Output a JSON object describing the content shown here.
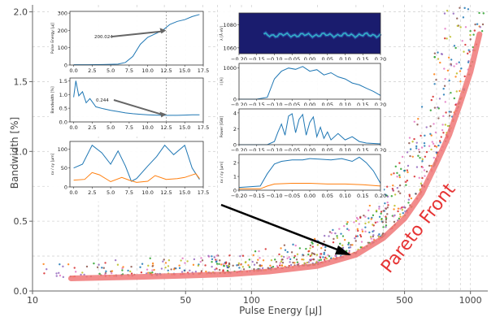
{
  "chart_data": [
    {
      "type": "scatter",
      "role": "main",
      "xlabel": "Pulse Energy [μJ]",
      "ylabel": "Bandwidth [%]",
      "xscale": "log",
      "xlim": [
        10,
        1200
      ],
      "ylim": [
        0.0,
        2.05
      ],
      "xticks": [
        10,
        50,
        100,
        500,
        1000
      ],
      "xtick_labels": [
        "10",
        "50",
        "100",
        "500",
        "1000"
      ],
      "yticks": [
        0.0,
        0.5,
        1.0,
        1.5,
        2.0
      ],
      "ytick_labels": [
        "0.0",
        "0.5",
        "1.0",
        "1.5",
        "2.0"
      ],
      "grid": true,
      "point_colors": [
        "#d62728",
        "#2ca02c",
        "#ff7f0e",
        "#9467bd",
        "#8c564b",
        "#1f77b4",
        "#bcbd22",
        "#e377c2"
      ],
      "pareto_front": {
        "label": "Pareto Front",
        "color": "#f07878",
        "x": [
          15,
          20,
          30,
          50,
          80,
          120,
          200,
          300,
          400,
          500,
          600,
          700,
          800,
          900,
          1000,
          1100
        ],
        "y": [
          0.09,
          0.095,
          0.1,
          0.11,
          0.12,
          0.14,
          0.18,
          0.26,
          0.38,
          0.52,
          0.7,
          0.92,
          1.12,
          1.35,
          1.57,
          1.84
        ]
      },
      "arrow": {
        "from": [
          140,
          0.62
        ],
        "to": [
          255,
          0.28
        ]
      }
    },
    {
      "type": "line",
      "role": "inset-left-1",
      "ylabel": "Pulse Energy [μJ]",
      "xlim": [
        -0.5,
        17.5
      ],
      "ylim": [
        0,
        310
      ],
      "xticks": [
        0.0,
        2.5,
        5.0,
        7.5,
        10.0,
        12.5,
        15.0,
        17.5
      ],
      "xtick_labels": [
        "0.0",
        "2.5",
        "5.0",
        "7.5",
        "10.0",
        "12.5",
        "15.0",
        "17.5"
      ],
      "yticks": [
        0,
        100,
        200,
        300
      ],
      "ytick_labels": [
        "0",
        "100",
        "200",
        "300"
      ],
      "annotation": "200.024",
      "vline": 12.5,
      "series": [
        {
          "color": "#1f77b4",
          "x": [
            0,
            2,
            4,
            6,
            7,
            8,
            9,
            10,
            11,
            12,
            13,
            14,
            15,
            16,
            17
          ],
          "values": [
            2,
            2,
            3,
            5,
            15,
            50,
            120,
            160,
            180,
            200,
            235,
            252,
            262,
            280,
            292
          ]
        }
      ]
    },
    {
      "type": "line",
      "role": "inset-left-2",
      "ylabel": "Bandwidth [%]",
      "xlim": [
        -0.5,
        17.5
      ],
      "ylim": [
        0,
        1.6
      ],
      "xticks": [
        0.0,
        2.5,
        5.0,
        7.5,
        10.0,
        12.5,
        15.0,
        17.5
      ],
      "xtick_labels": [
        "0.0",
        "2.5",
        "5.0",
        "7.5",
        "10.0",
        "12.5",
        "15.0",
        "17.5"
      ],
      "yticks": [
        0.0,
        0.5,
        1.0,
        1.5
      ],
      "ytick_labels": [
        "0.0",
        "0.5",
        "1.0",
        "1.5"
      ],
      "annotation": "0.244",
      "vline": 12.5,
      "series": [
        {
          "color": "#1f77b4",
          "x": [
            0,
            0.3,
            0.7,
            1.2,
            1.7,
            2.2,
            3,
            4,
            5,
            6,
            7,
            8,
            9,
            10,
            11,
            12,
            13,
            14,
            15,
            16,
            17
          ],
          "values": [
            0.9,
            1.5,
            0.95,
            1.1,
            0.7,
            0.85,
            0.55,
            0.48,
            0.42,
            0.38,
            0.33,
            0.3,
            0.28,
            0.26,
            0.25,
            0.24,
            0.24,
            0.24,
            0.25,
            0.26,
            0.26
          ]
        }
      ]
    },
    {
      "type": "line",
      "role": "inset-left-3",
      "ylabel": "εx / εy [μm]",
      "xlim": [
        -0.5,
        17.5
      ],
      "ylim": [
        0,
        120
      ],
      "xticks": [
        0.0,
        2.5,
        5.0,
        7.5,
        10.0,
        12.5,
        15.0,
        17.5
      ],
      "xtick_labels": [
        "0.0",
        "2.5",
        "5.0",
        "7.5",
        "10.0",
        "12.5",
        "15.0",
        "17.5"
      ],
      "yticks": [
        0,
        50,
        100
      ],
      "ytick_labels": [
        "0",
        "50",
        "100"
      ],
      "series": [
        {
          "color": "#1f77b4",
          "x": [
            0,
            1.2,
            2.5,
            3.8,
            5,
            6,
            7,
            7.8,
            8.5,
            10,
            11.2,
            12.3,
            13.5,
            15,
            16,
            17
          ],
          "values": [
            50,
            60,
            110,
            90,
            60,
            95,
            55,
            15,
            22,
            55,
            80,
            110,
            85,
            110,
            50,
            20
          ]
        },
        {
          "color": "#ff7f0e",
          "x": [
            0,
            1.5,
            2.5,
            3.5,
            5,
            6.5,
            7.5,
            8.5,
            10,
            11,
            12.5,
            14,
            15,
            16.5,
            17
          ],
          "values": [
            18,
            20,
            38,
            32,
            14,
            25,
            18,
            12,
            15,
            30,
            20,
            22,
            25,
            35,
            22
          ]
        }
      ]
    },
    {
      "type": "heatmap",
      "role": "inset-right-1",
      "ylabel": "λ [Å eV]",
      "xlim": [
        -0.2,
        0.2
      ],
      "ylim": [
        1055,
        1090
      ],
      "yticks": [
        1060,
        1080
      ],
      "ytick_labels": [
        "1060",
        "1080"
      ],
      "xticks": [
        -0.2,
        -0.15,
        -0.1,
        -0.05,
        0.0,
        0.05,
        0.1,
        0.15,
        0.2
      ],
      "xtick_labels": [
        "−0.20",
        "−0.15",
        "−0.10",
        "−0.05",
        "0.00",
        "0.05",
        "0.10",
        "0.15",
        "0.20"
      ],
      "colormap": [
        "#1a1c6e",
        "#2a4fa8",
        "#34b8c8"
      ]
    },
    {
      "type": "line",
      "role": "inset-right-2",
      "ylabel": "I [A]",
      "xlim": [
        -0.2,
        0.2
      ],
      "ylim": [
        0,
        1150
      ],
      "yticks": [
        0,
        1000
      ],
      "ytick_labels": [
        "0",
        "1000"
      ],
      "xticks": [
        -0.2,
        -0.15,
        -0.1,
        -0.05,
        0.0,
        0.05,
        0.1,
        0.15,
        0.2
      ],
      "xtick_labels": [
        "−0.20",
        "−0.15",
        "−0.10",
        "−0.05",
        "0.00",
        "0.05",
        "0.10",
        "0.15",
        "0.20"
      ],
      "series": [
        {
          "color": "#1f77b4",
          "x": [
            -0.2,
            -0.15,
            -0.12,
            -0.1,
            -0.08,
            -0.06,
            -0.04,
            -0.02,
            0.0,
            0.02,
            0.04,
            0.06,
            0.08,
            0.1,
            0.12,
            0.14,
            0.16,
            0.18,
            0.2
          ],
          "values": [
            0,
            0,
            60,
            650,
            900,
            1000,
            960,
            1050,
            900,
            950,
            780,
            850,
            720,
            650,
            520,
            460,
            350,
            250,
            120
          ]
        }
      ]
    },
    {
      "type": "line",
      "role": "inset-right-3",
      "ylabel": "Power [GW]",
      "xlim": [
        -0.2,
        0.2
      ],
      "ylim": [
        0,
        4.5
      ],
      "yticks": [
        0,
        2,
        4
      ],
      "ytick_labels": [
        "0",
        "2",
        "4"
      ],
      "xticks": [
        -0.2,
        -0.15,
        -0.1,
        -0.05,
        0.0,
        0.05,
        0.1,
        0.15,
        0.2
      ],
      "xtick_labels": [
        "−0.20",
        "−0.15",
        "−0.10",
        "−0.05",
        "0.00",
        "0.05",
        "0.10",
        "0.15",
        "0.20"
      ],
      "series": [
        {
          "color": "#1f77b4",
          "x": [
            -0.2,
            -0.12,
            -0.1,
            -0.09,
            -0.08,
            -0.07,
            -0.06,
            -0.05,
            -0.04,
            -0.03,
            -0.02,
            -0.01,
            0.0,
            0.01,
            0.02,
            0.03,
            0.04,
            0.05,
            0.06,
            0.08,
            0.1,
            0.12,
            0.14,
            0.16,
            0.2
          ],
          "values": [
            0,
            0,
            0.4,
            1.6,
            2.6,
            1.2,
            3.6,
            3.9,
            1.5,
            3.2,
            3.8,
            1.2,
            2.8,
            3.5,
            1.0,
            2.2,
            0.8,
            1.6,
            0.6,
            1.4,
            0.6,
            1.0,
            0.4,
            0.2,
            0.1
          ]
        }
      ]
    },
    {
      "type": "line",
      "role": "inset-right-4",
      "ylabel": "εx / εy [μm]",
      "xlim": [
        -0.2,
        0.2
      ],
      "ylim": [
        0,
        2.6
      ],
      "yticks": [
        0,
        1,
        2
      ],
      "ytick_labels": [
        "0",
        "1",
        "2"
      ],
      "xticks": [
        -0.2,
        -0.15,
        -0.1,
        -0.05,
        0.0,
        0.05,
        0.1,
        0.15,
        0.2
      ],
      "xtick_labels": [
        "−0.20",
        "−0.15",
        "−0.10",
        "−0.05",
        "0.00",
        "0.05",
        "0.10",
        "0.15",
        "0.20"
      ],
      "series": [
        {
          "color": "#1f77b4",
          "x": [
            -0.2,
            -0.14,
            -0.12,
            -0.1,
            -0.08,
            -0.05,
            -0.02,
            0.0,
            0.03,
            0.06,
            0.09,
            0.12,
            0.14,
            0.16,
            0.18,
            0.2
          ],
          "values": [
            0.2,
            0.3,
            1.2,
            1.9,
            2.1,
            2.2,
            2.2,
            2.3,
            2.25,
            2.2,
            2.3,
            2.1,
            2.4,
            2.0,
            1.4,
            0.5
          ]
        },
        {
          "color": "#ff7f0e",
          "x": [
            -0.2,
            -0.14,
            -0.12,
            -0.1,
            -0.05,
            0.0,
            0.05,
            0.1,
            0.15,
            0.2
          ],
          "values": [
            0.1,
            0.1,
            0.3,
            0.45,
            0.5,
            0.5,
            0.45,
            0.45,
            0.4,
            0.3
          ]
        }
      ]
    }
  ]
}
